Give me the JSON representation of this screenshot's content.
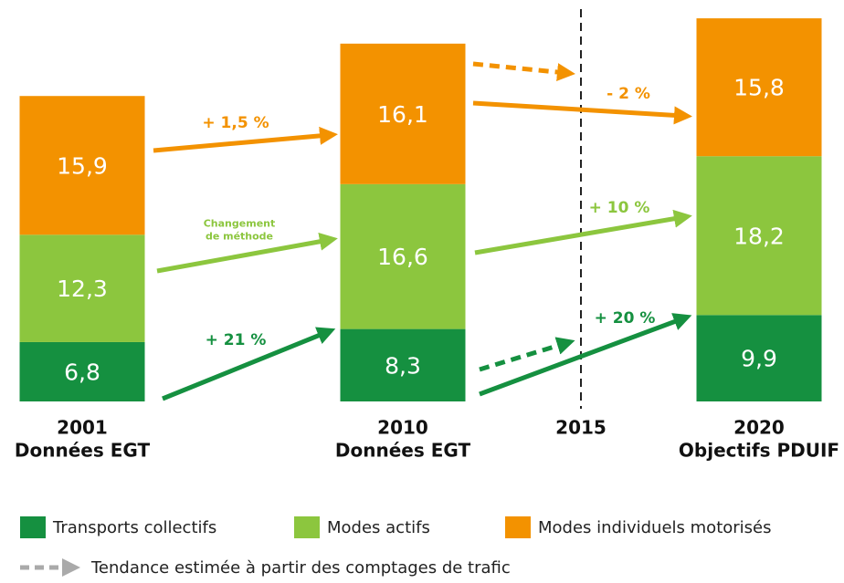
{
  "chart_data": {
    "type": "stacked_bar",
    "x": [
      2001,
      2010,
      2020
    ],
    "category_labels": [
      "Données EGT",
      "Données EGT",
      "Objectifs PDUIF"
    ],
    "xlim": [
      1999,
      2022
    ],
    "ylim": [
      0,
      46
    ],
    "series": [
      {
        "name": "Transports collectifs",
        "color": "#159040",
        "values": [
          6.8,
          8.3,
          9.9
        ],
        "value_labels": [
          "6,8",
          "8,3",
          "9,9"
        ]
      },
      {
        "name": "Modes actifs",
        "color": "#8cc63e",
        "values": [
          12.3,
          16.6,
          18.2
        ],
        "value_labels": [
          "12,3",
          "16,6",
          "18,2"
        ]
      },
      {
        "name": "Modes individuels motorisés",
        "color": "#f39200",
        "values": [
          15.9,
          16.1,
          15.8
        ],
        "value_labels": [
          "15,9",
          "16,1",
          "15,8"
        ]
      }
    ],
    "marker": {
      "x": 2015
    },
    "annotations": [
      "+ 1,5 %",
      "Changement de méthode",
      "+ 21 %",
      "- 2 %",
      "+ 10 %",
      "+ 20 %"
    ],
    "trend_label": "Tendance estimée à partir des comptages de trafic"
  }
}
